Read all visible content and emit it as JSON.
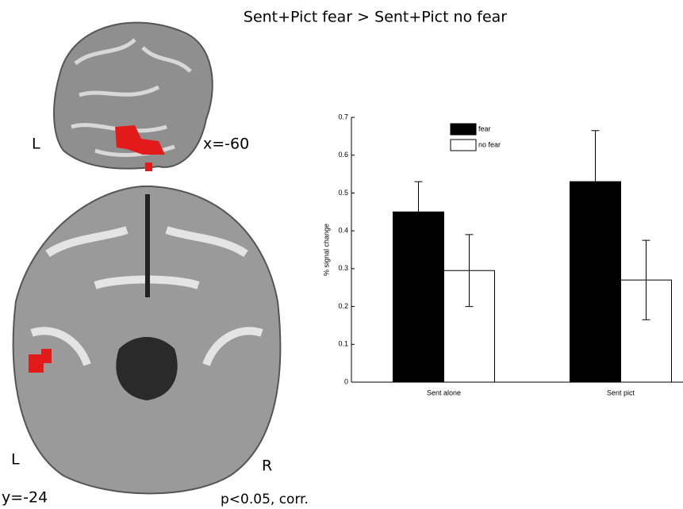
{
  "chart_data": {
    "type": "bar",
    "title": "Sent+Pict fear > Sent+Pict no fear",
    "y_label": "% signal change",
    "categories": [
      "Sent alone",
      "Sent pict"
    ],
    "series": [
      {
        "name": "fear",
        "color": "#000000",
        "values": [
          0.45,
          0.53
        ],
        "errors": [
          0.08,
          0.135
        ]
      },
      {
        "name": "no fear",
        "color": "#ffffff",
        "values": [
          0.295,
          0.27
        ],
        "errors": [
          0.095,
          0.105
        ]
      }
    ],
    "ylim": [
      0,
      0.7
    ],
    "yticks": [
      0,
      0.1,
      0.2,
      0.3,
      0.4,
      0.5,
      0.6,
      0.7
    ]
  },
  "annotations": {
    "sagittal_side": "L",
    "sagittal_slice": "x=-60",
    "axial_left": "L",
    "axial_right": "R",
    "axial_slice": "y=-24",
    "threshold": "p<0.05, corr."
  }
}
